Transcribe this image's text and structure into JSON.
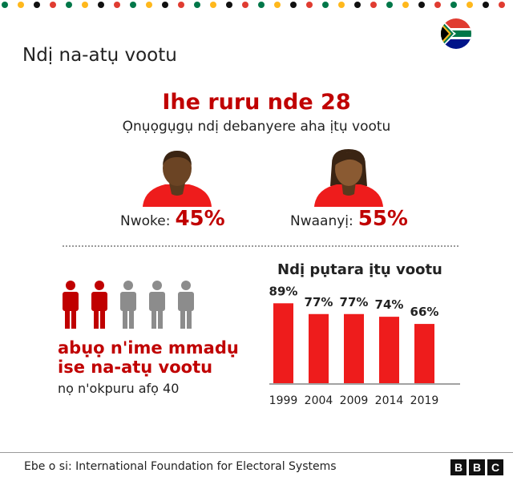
{
  "title": "Ndị na-atụ vootu",
  "headline": "Ihe ruru nde 28",
  "subheadline": "Ọnụọgụgụ ndị debanyere aha ịtụ vootu",
  "gender": {
    "male": {
      "label": "Nwoke:",
      "value": "45%"
    },
    "female": {
      "label": "Nwaanyị:",
      "value": "55%"
    }
  },
  "youth": {
    "line1": "abụọ n'ime mmadụ",
    "line2": "ise na-atụ vootu",
    "line3": "nọ n'okpuru afọ 40",
    "highlighted_count": 2,
    "total_count": 5
  },
  "colors": {
    "accent": "#c00000",
    "bar": "#ee1c1c",
    "grey": "#8c8c8c",
    "skin": "#6b4424",
    "hair": "#3a2413"
  },
  "chart_data": {
    "type": "bar",
    "title": "Ndị pụtara ịtụ vootu",
    "categories": [
      "1999",
      "2004",
      "2009",
      "2014",
      "2019"
    ],
    "values": [
      89,
      77,
      77,
      74,
      66
    ],
    "value_labels": [
      "89%",
      "77%",
      "77%",
      "74%",
      "66%"
    ],
    "ylim": [
      0,
      100
    ],
    "xlabel": "",
    "ylabel": "",
    "grid": false
  },
  "footer": {
    "source": "Ebe o si: International Foundation for Electoral Systems",
    "logo": [
      "B",
      "B",
      "C"
    ]
  }
}
